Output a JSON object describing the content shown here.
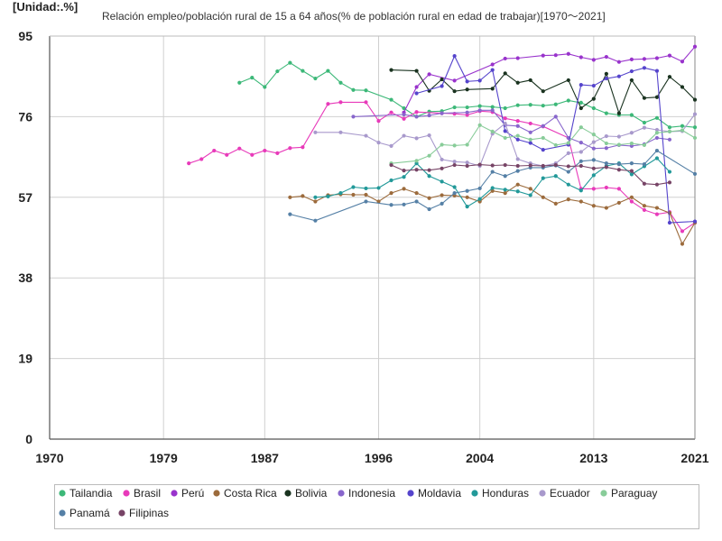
{
  "unit_label": "[Unidad:.%]",
  "chart_data": {
    "type": "line",
    "title": "Relación empleo/población rural de 15 a 64 años(% de población rural en edad de trabajar)[1970～2021]",
    "xlabel": "",
    "ylabel": "",
    "xlim": [
      1970,
      2021
    ],
    "ylim": [
      0,
      95
    ],
    "x_ticks": [
      1970,
      1979,
      1987,
      1996,
      2004,
      2013,
      2021
    ],
    "y_ticks": [
      0,
      19,
      38,
      57,
      76,
      95
    ],
    "grid": true,
    "legend_position": "bottom",
    "series": [
      {
        "name": "Tailandia",
        "color": "#3cb878",
        "x": [
          1985,
          1986,
          1987,
          1988,
          1989,
          1990,
          1991,
          1992,
          1993,
          1994,
          1995,
          1997,
          1998,
          1999,
          2000,
          2001,
          2002,
          2003,
          2004,
          2005,
          2006,
          2007,
          2008,
          2009,
          2010,
          2011,
          2012,
          2013,
          2014,
          2015,
          2016,
          2017,
          2018,
          2019,
          2020,
          2021
        ],
        "y": [
          84,
          85.2,
          83,
          86.7,
          88.7,
          86.8,
          85,
          86.8,
          84,
          82.3,
          82.2,
          80,
          78,
          76,
          77.2,
          77.3,
          78.2,
          78.2,
          78.5,
          78.3,
          78,
          78.7,
          78.8,
          78.6,
          78.9,
          79.8,
          79.3,
          78,
          76.8,
          76.4,
          76.4,
          74.6,
          75.7,
          73.5,
          73.8,
          73.5
        ]
      },
      {
        "name": "Brasil",
        "color": "#e83aba",
        "x": [
          1981,
          1982,
          1983,
          1984,
          1985,
          1986,
          1987,
          1988,
          1989,
          1990,
          1992,
          1993,
          1995,
          1996,
          1997,
          1998,
          1999,
          2001,
          2002,
          2003,
          2004,
          2005,
          2006,
          2007,
          2008,
          2009,
          2011,
          2012,
          2013,
          2014,
          2015,
          2016,
          2017,
          2018,
          2019,
          2020,
          2021
        ],
        "y": [
          65,
          66,
          68,
          67,
          68.5,
          67,
          68,
          67.4,
          68.6,
          68.8,
          79,
          79.4,
          79.4,
          75,
          77,
          75.5,
          77.1,
          76.8,
          76.7,
          76.4,
          77.3,
          77.1,
          75.6,
          75,
          74.4,
          73.7,
          71,
          59,
          59,
          59.3,
          59,
          56,
          54,
          53,
          53.5,
          49,
          51
        ]
      },
      {
        "name": "Perú",
        "color": "#9933cc",
        "x": [
          1998,
          1999,
          2000,
          2002,
          2005,
          2006,
          2007,
          2009,
          2010,
          2011,
          2012,
          2013,
          2014,
          2015,
          2016,
          2017,
          2018,
          2019,
          2020,
          2021
        ],
        "y": [
          77,
          83,
          86,
          84.5,
          88.3,
          89.7,
          89.8,
          90.4,
          90.5,
          90.8,
          90,
          89.4,
          90.1,
          88.9,
          89.5,
          89.6,
          89.8,
          90.4,
          89,
          92.5
        ]
      },
      {
        "name": "Costa Rica",
        "color": "#9c6b3c",
        "x": [
          1989,
          1990,
          1991,
          1992,
          1993,
          1994,
          1995,
          1996,
          1997,
          1998,
          1999,
          2000,
          2001,
          2002,
          2003,
          2004,
          2005,
          2006,
          2007,
          2008,
          2009,
          2010,
          2011,
          2012,
          2013,
          2014,
          2015,
          2016,
          2017,
          2018,
          2019,
          2020,
          2021
        ],
        "y": [
          57,
          57.3,
          56,
          57.5,
          57.7,
          57.6,
          57.6,
          56,
          58,
          59,
          58,
          56.8,
          57.5,
          57.4,
          57,
          56,
          58.5,
          58,
          60,
          59,
          57,
          55.5,
          56.5,
          56,
          55,
          54.5,
          55.7,
          57,
          55,
          54.5,
          53.3,
          46,
          51
        ]
      },
      {
        "name": "Bolivia",
        "color": "#1a3320",
        "x": [
          1997,
          1999,
          2000,
          2001,
          2002,
          2003,
          2005,
          2006,
          2007,
          2008,
          2009,
          2011,
          2012,
          2013,
          2014,
          2015,
          2016,
          2017,
          2018,
          2019,
          2020,
          2021
        ],
        "y": [
          87,
          86.8,
          82.1,
          84.8,
          82,
          82.4,
          82.6,
          86.2,
          84,
          84.6,
          82,
          84.6,
          78,
          80.2,
          86.1,
          76.8,
          84.6,
          80.4,
          80.6,
          85.4,
          83,
          80
        ]
      },
      {
        "name": "Indonesia",
        "color": "#8866cc",
        "x": [
          1994,
          1998,
          1999,
          2000,
          2001,
          2003,
          2004,
          2005,
          2006,
          2007,
          2008,
          2009,
          2010,
          2011,
          2012,
          2013,
          2014,
          2015,
          2016,
          2017,
          2018,
          2019
        ],
        "y": [
          76,
          76.5,
          76,
          76.3,
          76.8,
          77,
          77.5,
          77.5,
          74,
          73.8,
          72.3,
          73.8,
          76,
          71,
          69.9,
          68.5,
          68.6,
          69.3,
          69.1,
          69.5,
          71,
          70.6
        ]
      },
      {
        "name": "Moldavia",
        "color": "#5544cc",
        "x": [
          1999,
          2001,
          2002,
          2003,
          2004,
          2005,
          2006,
          2007,
          2008,
          2009,
          2011,
          2012,
          2013,
          2014,
          2015,
          2016,
          2017,
          2018,
          2019,
          2021
        ],
        "y": [
          81.5,
          83.2,
          90.3,
          84.3,
          84.5,
          87,
          72.6,
          70.6,
          69.8,
          68.2,
          69.4,
          83.5,
          83.3,
          85,
          85.5,
          86.7,
          87.5,
          86.8,
          51,
          51.3
        ]
      },
      {
        "name": "Honduras",
        "color": "#229999",
        "x": [
          1991,
          1992,
          1993,
          1994,
          1995,
          1996,
          1997,
          1998,
          1999,
          2000,
          2001,
          2002,
          2003,
          2004,
          2005,
          2006,
          2007,
          2008,
          2009,
          2010,
          2011,
          2012,
          2013,
          2014,
          2015,
          2016,
          2017,
          2018,
          2019
        ],
        "y": [
          57,
          57.2,
          58,
          59.4,
          59.1,
          59.2,
          61,
          61.8,
          65,
          62,
          60.7,
          59.4,
          54.8,
          56.6,
          59.2,
          58.8,
          58.4,
          57.5,
          61.5,
          62,
          60,
          58.6,
          62.2,
          64.4,
          65,
          62.4,
          64.3,
          66.2,
          63
        ]
      },
      {
        "name": "Ecuador",
        "color": "#a899cc",
        "x": [
          1991,
          1993,
          1995,
          1996,
          1997,
          1998,
          1999,
          2000,
          2001,
          2002,
          2003,
          2004,
          2005,
          2006,
          2007,
          2008,
          2009,
          2010,
          2011,
          2012,
          2013,
          2014,
          2015,
          2016,
          2017,
          2018,
          2019,
          2020,
          2021
        ],
        "y": [
          72.3,
          72.3,
          71.5,
          69.9,
          69.1,
          71.5,
          70.9,
          71.6,
          65.9,
          65.4,
          65.2,
          64.4,
          72,
          74.4,
          66,
          65,
          64.4,
          65,
          67.4,
          67.7,
          70,
          71.4,
          71.3,
          72.2,
          73.4,
          72.9,
          72.5,
          72.6,
          76.6
        ]
      },
      {
        "name": "Paraguay",
        "color": "#88cc99",
        "x": [
          1997,
          1999,
          2000,
          2001,
          2002,
          2003,
          2004,
          2005,
          2006,
          2007,
          2008,
          2009,
          2010,
          2011,
          2012,
          2013,
          2014,
          2015,
          2016,
          2017,
          2018,
          2019,
          2020,
          2021
        ],
        "y": [
          65,
          65.6,
          66.8,
          69.4,
          69.2,
          69.4,
          74,
          72.5,
          71,
          71.5,
          70.6,
          71,
          69.3,
          69.8,
          73.5,
          71.8,
          69.7,
          69.4,
          69.7,
          69.3,
          72.2,
          72.5,
          72.8,
          71
        ]
      },
      {
        "name": "Panamá",
        "color": "#5580a6",
        "x": [
          1989,
          1991,
          1995,
          1997,
          1998,
          1999,
          2000,
          2001,
          2002,
          2003,
          2004,
          2005,
          2006,
          2007,
          2008,
          2009,
          2010,
          2011,
          2012,
          2013,
          2014,
          2015,
          2016,
          2017,
          2018,
          2021
        ],
        "y": [
          53,
          51.5,
          56,
          55.2,
          55.3,
          56,
          54.2,
          55.5,
          58,
          58.5,
          59.1,
          63,
          62,
          63.2,
          64,
          64,
          64.5,
          63,
          65.5,
          65.8,
          65,
          64.8,
          65,
          64.8,
          68,
          62.5
        ]
      },
      {
        "name": "Filipinas",
        "color": "#774466",
        "x": [
          1997,
          1998,
          1999,
          2000,
          2001,
          2002,
          2003,
          2004,
          2005,
          2006,
          2007,
          2008,
          2009,
          2010,
          2011,
          2012,
          2013,
          2014,
          2015,
          2016,
          2017,
          2018,
          2019
        ],
        "y": [
          64.6,
          63.3,
          63.5,
          63.4,
          63.8,
          64.6,
          64.4,
          64.7,
          64.5,
          64.6,
          64.4,
          64.5,
          64.4,
          64.6,
          64.3,
          64.4,
          63.8,
          64.1,
          63.5,
          63.2,
          60.2,
          60,
          60.5
        ]
      }
    ]
  }
}
